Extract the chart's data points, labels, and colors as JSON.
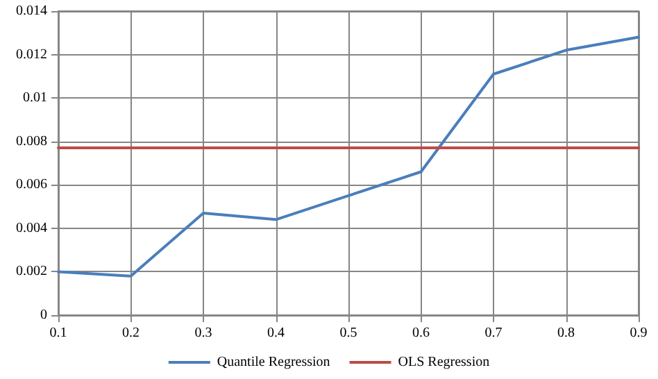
{
  "chart_data": {
    "type": "line",
    "x": [
      0.1,
      0.2,
      0.3,
      0.4,
      0.5,
      0.6,
      0.7,
      0.8,
      0.9
    ],
    "series": [
      {
        "name": "Quantile Regression",
        "color": "#4a7ebb",
        "values": [
          0.002,
          0.0018,
          0.0047,
          0.0044,
          0.0055,
          0.0066,
          0.0111,
          0.0122,
          0.0128
        ]
      },
      {
        "name": "OLS Regression",
        "color": "#be4b48",
        "values": [
          0.0077,
          0.0077,
          0.0077,
          0.0077,
          0.0077,
          0.0077,
          0.0077,
          0.0077,
          0.0077
        ]
      }
    ],
    "xlim": [
      0.1,
      0.9
    ],
    "xticks": [
      0.1,
      0.2,
      0.3,
      0.4,
      0.5,
      0.6,
      0.7,
      0.8,
      0.9
    ],
    "ylim": [
      0,
      0.014
    ],
    "yticks": [
      0,
      0.002,
      0.004,
      0.006,
      0.008,
      0.01,
      0.012,
      0.014
    ],
    "grid": true,
    "legend": "bottom",
    "marker": "none",
    "line_style": "solid"
  }
}
